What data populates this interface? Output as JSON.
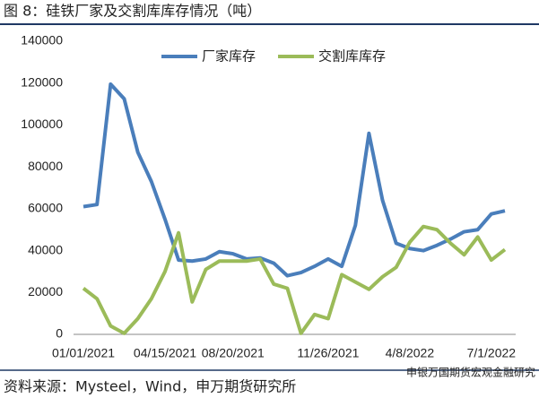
{
  "chart_data": {
    "type": "line",
    "title": "图 8：硅铁厂家及交割库库存情况（吨）",
    "source": "资料来源：Mysteel，Wind，申万期货研究所",
    "watermark": "申银万国期货宏观金融研究",
    "categories": [
      "01/01/2021",
      null,
      null,
      null,
      null,
      null,
      "04/15/2021",
      null,
      null,
      null,
      null,
      "08/20/2021",
      null,
      null,
      null,
      null,
      null,
      null,
      "11/26/2021",
      null,
      null,
      null,
      null,
      null,
      "4/8/2022",
      null,
      null,
      null,
      null,
      null,
      "7/1/2022",
      null
    ],
    "series": [
      {
        "name": "厂家库存",
        "color": "#4a7ebb",
        "values": [
          61000,
          62000,
          119500,
          112500,
          87000,
          73000,
          55000,
          35500,
          35000,
          36000,
          39500,
          38500,
          36000,
          36500,
          34000,
          28000,
          29500,
          32500,
          36000,
          32500,
          52000,
          96000,
          64000,
          43500,
          41000,
          40000,
          42500,
          45500,
          49000,
          50000,
          57500,
          59000
        ]
      },
      {
        "name": "交割库库存",
        "color": "#9bbb59",
        "values": [
          22000,
          17000,
          4000,
          500,
          7500,
          17000,
          30000,
          48500,
          15500,
          31000,
          35000,
          35000,
          35000,
          36000,
          24000,
          22000,
          500,
          9500,
          7500,
          28500,
          25000,
          21500,
          27500,
          32000,
          44000,
          51500,
          50000,
          43500,
          38000,
          46500,
          35500,
          40500
        ]
      }
    ],
    "ylim": [
      0,
      140000
    ],
    "yticks": [
      0,
      20000,
      40000,
      60000,
      80000,
      100000,
      120000,
      140000
    ],
    "legend": "top"
  }
}
